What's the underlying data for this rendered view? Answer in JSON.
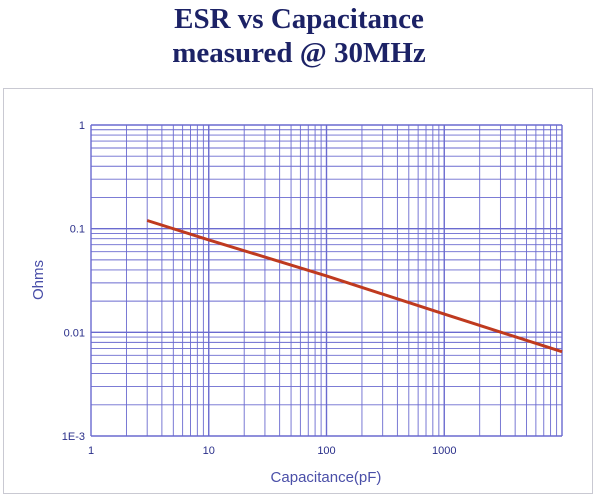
{
  "title_line1": "ESR vs Capacitance",
  "title_line2": "measured @ 30MHz",
  "colors": {
    "grid": "#6a6acf",
    "series": "#bf3a1f",
    "title": "#1c2266"
  },
  "chart_data": {
    "type": "line",
    "xlabel": "Capacitance(pF)",
    "ylabel": "Ohms",
    "xscale": "log",
    "yscale": "log",
    "xlim": [
      1,
      10000
    ],
    "ylim": [
      0.001,
      1
    ],
    "grid": true,
    "x_tick_labels": [
      "1",
      "10",
      "100",
      "1000"
    ],
    "x_tick_values": [
      1,
      10,
      100,
      1000
    ],
    "y_tick_labels": [
      "1",
      "0.1",
      "0.01",
      "1E-3"
    ],
    "y_tick_values": [
      1,
      0.1,
      0.01,
      0.001
    ],
    "series": [
      {
        "x": [
          3,
          10,
          100,
          1000,
          10000
        ],
        "y": [
          0.12,
          0.078,
          0.035,
          0.015,
          0.0065
        ]
      }
    ]
  }
}
